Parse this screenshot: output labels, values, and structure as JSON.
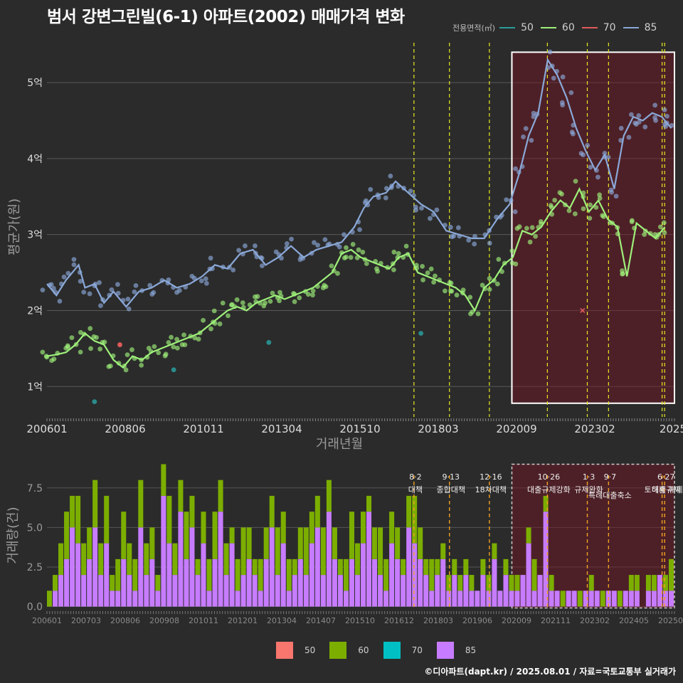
{
  "title": "범서 강변그린빌(6-1) 아파트(2002) 매매가격 변화",
  "legend": {
    "title": "전용면적(㎡)",
    "items": [
      {
        "label": "50",
        "color": "#2a9d9d"
      },
      {
        "label": "60",
        "color": "#9ef07a"
      },
      {
        "label": "70",
        "color": "#e05a5a"
      },
      {
        "label": "85",
        "color": "#8aa8d8"
      }
    ]
  },
  "bar_legend": {
    "items": [
      {
        "label": "50",
        "color": "#f8766d"
      },
      {
        "label": "60",
        "color": "#7cae00"
      },
      {
        "label": "70",
        "color": "#00bfc4"
      },
      {
        "label": "85",
        "color": "#c77cff"
      }
    ]
  },
  "footer": "©디아파트(dapt.kr) / 2025.08.01 / 자료=국토교통부 실거래가",
  "chart_data": [
    {
      "type": "line",
      "title": "범서 강변그린빌(6-1) 아파트(2002) 매매가격 변화",
      "xlabel": "거래년월",
      "ylabel": "평균가(원)",
      "xlim": [
        2006.0,
        2025.8
      ],
      "ylim": [
        0.6,
        5.6
      ],
      "x_ticks": [
        "200601",
        "200806",
        "201011",
        "201304",
        "201510",
        "201803",
        "202009",
        "202302",
        "2025"
      ],
      "y_ticks": [
        "1억",
        "2억",
        "3억",
        "4억",
        "5억"
      ],
      "y_tick_values": [
        1,
        2,
        3,
        4,
        5
      ],
      "policy_lines": [
        2017.58,
        2018.7,
        2019.96,
        2021.79,
        2023.05,
        2023.72,
        2025.41,
        2025.49
      ],
      "highlight_range": [
        2020.67,
        2025.8
      ],
      "series": [
        {
          "name": "85",
          "color": "#8aa8d8",
          "x": [
            2006.0,
            2006.3,
            2006.6,
            2007.0,
            2007.2,
            2007.5,
            2007.8,
            2008.1,
            2008.5,
            2008.9,
            2009.3,
            2009.7,
            2010.1,
            2010.5,
            2010.9,
            2011.3,
            2011.7,
            2012.1,
            2012.5,
            2012.9,
            2013.3,
            2013.7,
            2014.1,
            2014.5,
            2014.9,
            2015.3,
            2015.7,
            2016.0,
            2016.3,
            2016.7,
            2017.0,
            2017.4,
            2017.8,
            2018.2,
            2018.6,
            2019.0,
            2019.4,
            2019.8,
            2020.2,
            2020.6,
            2020.9,
            2021.2,
            2021.5,
            2021.8,
            2022.1,
            2022.4,
            2022.7,
            2023.0,
            2023.3,
            2023.6,
            2023.9,
            2024.2,
            2024.5,
            2024.8,
            2025.1,
            2025.4,
            2025.7
          ],
          "values": [
            2.35,
            2.2,
            2.4,
            2.6,
            2.3,
            2.35,
            2.1,
            2.25,
            2.05,
            2.25,
            2.3,
            2.4,
            2.3,
            2.35,
            2.45,
            2.6,
            2.55,
            2.75,
            2.8,
            2.6,
            2.7,
            2.85,
            2.7,
            2.8,
            2.85,
            2.9,
            3.1,
            3.35,
            3.5,
            3.55,
            3.7,
            3.55,
            3.4,
            3.3,
            3.05,
            3.0,
            2.95,
            2.95,
            3.2,
            3.4,
            3.8,
            4.3,
            4.6,
            5.3,
            5.1,
            4.8,
            4.4,
            4.1,
            3.85,
            4.05,
            3.6,
            4.3,
            4.55,
            4.5,
            4.6,
            4.55,
            4.4
          ]
        },
        {
          "name": "60",
          "color": "#9ef07a",
          "x": [
            2006.0,
            2006.3,
            2006.6,
            2006.9,
            2007.2,
            2007.5,
            2007.8,
            2008.1,
            2008.4,
            2008.7,
            2009.0,
            2009.3,
            2009.6,
            2009.9,
            2010.2,
            2010.5,
            2010.8,
            2011.1,
            2011.4,
            2011.7,
            2012.0,
            2012.3,
            2012.6,
            2012.9,
            2013.2,
            2013.5,
            2013.8,
            2014.1,
            2014.4,
            2014.7,
            2015.0,
            2015.3,
            2015.6,
            2015.9,
            2016.2,
            2016.5,
            2016.8,
            2017.1,
            2017.4,
            2017.7,
            2018.0,
            2018.3,
            2018.6,
            2018.9,
            2019.2,
            2019.5,
            2019.8,
            2020.1,
            2020.4,
            2020.7,
            2021.0,
            2021.3,
            2021.6,
            2021.9,
            2022.2,
            2022.5,
            2022.8,
            2023.1,
            2023.4,
            2023.7,
            2024.0,
            2024.3,
            2024.6,
            2024.9,
            2025.2,
            2025.5
          ],
          "values": [
            1.4,
            1.42,
            1.45,
            1.55,
            1.7,
            1.6,
            1.55,
            1.35,
            1.25,
            1.4,
            1.35,
            1.45,
            1.5,
            1.55,
            1.6,
            1.65,
            1.7,
            1.8,
            1.9,
            2.0,
            2.05,
            2.0,
            2.1,
            2.15,
            2.2,
            2.15,
            2.2,
            2.25,
            2.3,
            2.4,
            2.5,
            2.75,
            2.8,
            2.7,
            2.65,
            2.6,
            2.55,
            2.7,
            2.75,
            2.5,
            2.45,
            2.4,
            2.35,
            2.3,
            2.2,
            2.0,
            2.3,
            2.4,
            2.6,
            2.7,
            3.05,
            3.0,
            3.1,
            3.3,
            3.45,
            3.35,
            3.6,
            3.3,
            3.45,
            3.2,
            3.1,
            2.45,
            3.15,
            3.05,
            2.95,
            3.1
          ]
        },
        {
          "name": "50",
          "color": "#2a9d9d",
          "x": [
            2007.5,
            2010.0,
            2013.0,
            2017.8
          ],
          "values": [
            0.8,
            1.22,
            1.58,
            1.7
          ]
        },
        {
          "name": "70",
          "color": "#e05a5a",
          "x": [
            2008.3,
            2022.9
          ],
          "values": [
            1.55,
            2.0
          ]
        }
      ]
    },
    {
      "type": "bar",
      "title": "",
      "xlabel": "",
      "ylabel": "거래량(건)",
      "xlim": [
        2006.0,
        2025.8
      ],
      "ylim": [
        -0.2,
        9.2
      ],
      "x_ticks": [
        "200601",
        "200703",
        "200806",
        "200908",
        "201011",
        "201201",
        "201304",
        "201407",
        "201510",
        "201612",
        "201803",
        "201906",
        "202009",
        "202111",
        "202302",
        "202405",
        "202506"
      ],
      "y_ticks": [
        "0.0",
        "2.5",
        "5.0",
        "7.5"
      ],
      "y_tick_values": [
        0,
        2.5,
        5,
        7.5
      ],
      "highlight_range": [
        2020.67,
        2025.8
      ],
      "policy_annotations": [
        {
          "x": 2017.58,
          "date": "8·2",
          "label": "대책"
        },
        {
          "x": 2018.7,
          "date": "9·13",
          "label": "종합대책"
        },
        {
          "x": 2019.96,
          "date": "12·16",
          "label": "18차대책"
        },
        {
          "x": 2021.79,
          "date": "10·26",
          "label": "대출규제강화"
        },
        {
          "x": 2023.05,
          "date": "1·3",
          "label": "규제완화"
        },
        {
          "x": 2023.72,
          "date": "9·7",
          "label": "특례대출축소"
        },
        {
          "x": 2025.41,
          "date": "",
          "label": "토허제 해제"
        },
        {
          "x": 2025.49,
          "date": "6·27",
          "label": "대출규제"
        }
      ],
      "series": [
        {
          "name": "85",
          "color": "#c77cff",
          "values": [
            0,
            1,
            2,
            3,
            5,
            4,
            2,
            3,
            5,
            2,
            4,
            1,
            1,
            3,
            2,
            1,
            5,
            2,
            3,
            1,
            7,
            4,
            2,
            6,
            3,
            5,
            2,
            4,
            1,
            3,
            6,
            2,
            4,
            1,
            2,
            3,
            2,
            1,
            3,
            5,
            2,
            4,
            1,
            2,
            3,
            2,
            4,
            5,
            2,
            6,
            3,
            2,
            1,
            3,
            2,
            4,
            6,
            3,
            2,
            1,
            4,
            3,
            2,
            5,
            4,
            3,
            2,
            1,
            2,
            3,
            1,
            2,
            1,
            2,
            1,
            1,
            2,
            1,
            3,
            1,
            2,
            1,
            1,
            2,
            4,
            1,
            2,
            6,
            1,
            1,
            0,
            1,
            1,
            0,
            1,
            1,
            1,
            0,
            1,
            1,
            0,
            1,
            1,
            1,
            0,
            1,
            1,
            2,
            1,
            1
          ]
        },
        {
          "name": "60",
          "color": "#7cae00",
          "values": [
            1,
            1,
            2,
            3,
            2,
            3,
            2,
            2,
            3,
            2,
            3,
            1,
            2,
            3,
            2,
            2,
            3,
            2,
            2,
            1,
            2,
            3,
            2,
            2,
            3,
            2,
            1,
            2,
            2,
            3,
            2,
            2,
            1,
            2,
            3,
            2,
            1,
            2,
            2,
            2,
            3,
            2,
            2,
            1,
            2,
            3,
            2,
            2,
            3,
            2,
            2,
            1,
            2,
            3,
            2,
            2,
            1,
            2,
            3,
            2,
            2,
            2,
            1,
            2,
            3,
            2,
            1,
            2,
            1,
            1,
            1,
            1,
            1,
            1,
            1,
            0,
            1,
            1,
            1,
            0,
            1,
            1,
            1,
            0,
            1,
            2,
            0,
            1,
            1,
            0,
            1,
            0,
            0,
            1,
            0,
            1,
            0,
            1,
            0,
            0,
            1,
            0,
            1,
            1,
            0,
            1,
            1,
            0,
            1,
            2
          ]
        }
      ]
    }
  ]
}
